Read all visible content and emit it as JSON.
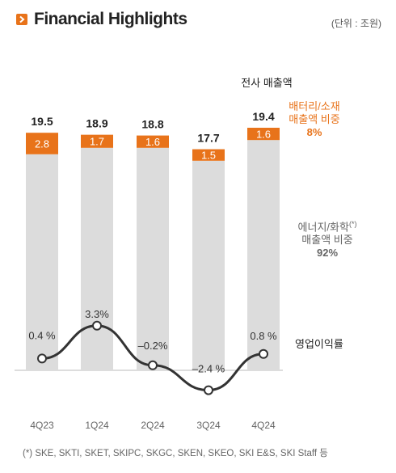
{
  "header": {
    "title": "Financial Highlights",
    "unit": "(단위 : 조원)"
  },
  "chart_data": {
    "type": "bar",
    "categories": [
      "4Q23",
      "1Q24",
      "2Q24",
      "3Q24",
      "4Q24"
    ],
    "series": [
      {
        "name": "에너지/화학 매출액 비중",
        "values": [
          16.7,
          17.2,
          17.2,
          16.2,
          17.8
        ]
      },
      {
        "name": "배터리/소재 매출액 비중",
        "values": [
          2.8,
          1.7,
          1.6,
          1.5,
          1.6
        ]
      }
    ],
    "totals": [
      19.5,
      18.9,
      18.8,
      17.7,
      19.4
    ],
    "total_labels": [
      "19.5",
      "18.9",
      "18.8",
      "17.7",
      "19.4"
    ],
    "battery_labels": [
      "2.8",
      "1.7",
      "1.6",
      "1.5",
      "1.6"
    ],
    "operating_margin": {
      "name": "영업이익률",
      "values": [
        0.4,
        3.3,
        -0.2,
        -2.4,
        0.8
      ],
      "labels": [
        "0.4 %",
        "3.3%",
        "–0.2%",
        "–2.4 %",
        "0.8 %"
      ]
    },
    "colors": {
      "energy": "#dcdcdc",
      "battery": "#e8731a",
      "line": "#333333"
    }
  },
  "annotations": {
    "total_label": "전사 매출액",
    "battery_share_line1": "배터리/소재",
    "battery_share_line2": "매출액 비중",
    "battery_share_value": "8%",
    "energy_share_line1": "에너지/화학",
    "energy_share_sup": "(*)",
    "energy_share_line2": "매출액 비중",
    "energy_share_value": "92%",
    "op_margin_label": "영업이익률"
  },
  "footnote": "(*) SKE, SKTI, SKET, SKIPC, SKGC, SKEN, SKEO, SKI E&S, SKI Staff 등"
}
